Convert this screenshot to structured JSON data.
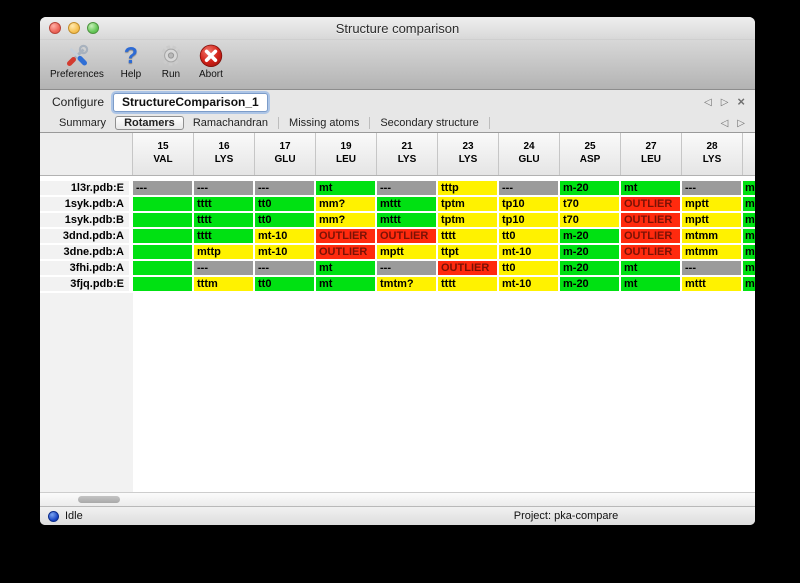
{
  "window": {
    "title": "Structure comparison"
  },
  "toolbar": {
    "items": [
      {
        "label": "Preferences"
      },
      {
        "label": "Help"
      },
      {
        "label": "Run"
      },
      {
        "label": "Abort"
      }
    ]
  },
  "icons": {
    "help_glyph": "?",
    "prev": "◁",
    "next": "▷",
    "close": "×"
  },
  "configure": {
    "label": "Configure",
    "value": "StructureComparison_1"
  },
  "tabs": {
    "items": [
      "Summary",
      "Rotamers",
      "Ramachandran",
      "Missing atoms",
      "Secondary structure"
    ],
    "active": "Rotamers"
  },
  "table": {
    "columns": [
      {
        "num": "15",
        "res": "VAL"
      },
      {
        "num": "16",
        "res": "LYS"
      },
      {
        "num": "17",
        "res": "GLU"
      },
      {
        "num": "19",
        "res": "LEU"
      },
      {
        "num": "21",
        "res": "LYS"
      },
      {
        "num": "23",
        "res": "LYS"
      },
      {
        "num": "24",
        "res": "GLU"
      },
      {
        "num": "25",
        "res": "ASP"
      },
      {
        "num": "27",
        "res": "LEU"
      },
      {
        "num": "28",
        "res": "LYS"
      }
    ],
    "colors": {
      "green": "#00e112",
      "yellow": "#fff200",
      "red": "#ff2a0e",
      "gray": "#9b9b9b",
      "outlier_text": "#7a1205",
      "cell_text": "#000000"
    },
    "partial_column": {
      "color": "green",
      "visible_text": "m"
    },
    "rows": [
      {
        "label": "1l3r.pdb:E",
        "cells": [
          [
            "---",
            "gray"
          ],
          [
            "---",
            "gray"
          ],
          [
            "---",
            "gray"
          ],
          [
            "mt",
            "green"
          ],
          [
            "---",
            "gray"
          ],
          [
            "tttp",
            "yellow"
          ],
          [
            "---",
            "gray"
          ],
          [
            "m-20",
            "green"
          ],
          [
            "mt",
            "green"
          ],
          [
            "---",
            "gray"
          ]
        ]
      },
      {
        "label": "1syk.pdb:A",
        "cells": [
          [
            "",
            "green"
          ],
          [
            "tttt",
            "green"
          ],
          [
            "tt0",
            "green"
          ],
          [
            "mm?",
            "yellow"
          ],
          [
            "mttt",
            "green"
          ],
          [
            "tptm",
            "yellow"
          ],
          [
            "tp10",
            "yellow"
          ],
          [
            "t70",
            "yellow"
          ],
          [
            "OUTLIER",
            "red"
          ],
          [
            "mptt",
            "yellow"
          ]
        ]
      },
      {
        "label": "1syk.pdb:B",
        "cells": [
          [
            "",
            "green"
          ],
          [
            "tttt",
            "green"
          ],
          [
            "tt0",
            "green"
          ],
          [
            "mm?",
            "yellow"
          ],
          [
            "mttt",
            "green"
          ],
          [
            "tptm",
            "yellow"
          ],
          [
            "tp10",
            "yellow"
          ],
          [
            "t70",
            "yellow"
          ],
          [
            "OUTLIER",
            "red"
          ],
          [
            "mptt",
            "yellow"
          ]
        ]
      },
      {
        "label": "3dnd.pdb:A",
        "cells": [
          [
            "",
            "green"
          ],
          [
            "tttt",
            "green"
          ],
          [
            "mt-10",
            "yellow"
          ],
          [
            "OUTLIER",
            "red"
          ],
          [
            "OUTLIER",
            "red"
          ],
          [
            "tttt",
            "yellow"
          ],
          [
            "tt0",
            "yellow"
          ],
          [
            "m-20",
            "green"
          ],
          [
            "OUTLIER",
            "red"
          ],
          [
            "mtmm",
            "yellow"
          ]
        ]
      },
      {
        "label": "3dne.pdb:A",
        "cells": [
          [
            "",
            "green"
          ],
          [
            "mttp",
            "yellow"
          ],
          [
            "mt-10",
            "yellow"
          ],
          [
            "OUTLIER",
            "red"
          ],
          [
            "mptt",
            "yellow"
          ],
          [
            "ttpt",
            "yellow"
          ],
          [
            "mt-10",
            "yellow"
          ],
          [
            "m-20",
            "green"
          ],
          [
            "OUTLIER",
            "red"
          ],
          [
            "mtmm",
            "yellow"
          ]
        ]
      },
      {
        "label": "3fhi.pdb:A",
        "cells": [
          [
            "",
            "green"
          ],
          [
            "---",
            "gray"
          ],
          [
            "---",
            "gray"
          ],
          [
            "mt",
            "green"
          ],
          [
            "---",
            "gray"
          ],
          [
            "OUTLIER",
            "red"
          ],
          [
            "tt0",
            "yellow"
          ],
          [
            "m-20",
            "green"
          ],
          [
            "mt",
            "green"
          ],
          [
            "---",
            "gray"
          ]
        ]
      },
      {
        "label": "3fjq.pdb:E",
        "cells": [
          [
            "",
            "green"
          ],
          [
            "tttm",
            "yellow"
          ],
          [
            "tt0",
            "green"
          ],
          [
            "mt",
            "green"
          ],
          [
            "tmtm?",
            "yellow"
          ],
          [
            "tttt",
            "yellow"
          ],
          [
            "mt-10",
            "yellow"
          ],
          [
            "m-20",
            "green"
          ],
          [
            "mt",
            "green"
          ],
          [
            "mttt",
            "yellow"
          ]
        ]
      }
    ]
  },
  "status": {
    "state": "Idle",
    "project": "Project: pka-compare"
  }
}
